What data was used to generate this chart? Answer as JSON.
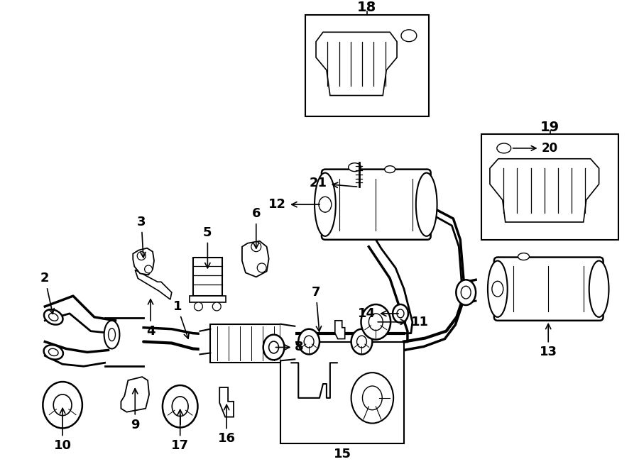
{
  "background_color": "#ffffff",
  "line_color": "#000000",
  "text_color": "#000000",
  "figsize": [
    9.0,
    6.61
  ],
  "dpi": 100
}
